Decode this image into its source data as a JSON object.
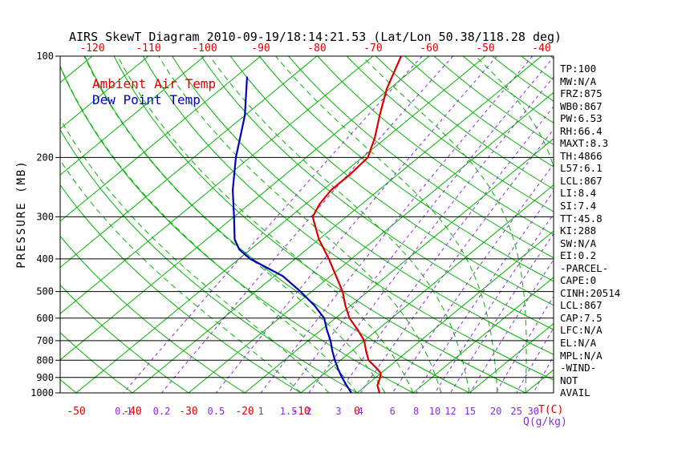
{
  "colors": {
    "background": "#ffffff",
    "grid_green": "#00b400",
    "mixing_purple": "#8a2be2",
    "temp_red": "#dd0000",
    "dew_blue": "#0000bb",
    "axis_black": "#000000"
  },
  "legend": {
    "ambient": "Ambient Air Temp",
    "dewpoint": "Dew Point Temp"
  },
  "stats": [
    "TP:100",
    "MW:N/A",
    "FRZ:875",
    "WB0:867",
    "PW:6.53",
    "RH:66.4",
    "MAXT:8.3",
    "TH:4866",
    "L57:6.1",
    "LCL:867",
    "LI:8.4",
    "SI:7.4",
    "TT:45.8",
    "KI:288",
    "SW:N/A",
    "EI:0.2",
    "-PARCEL-",
    "CAPE:0",
    "CINH:20514",
    "LCL:867",
    "CAP:7.5",
    "LFC:N/A",
    "EL:N/A",
    "MPL:N/A",
    "-WIND-",
    "NOT",
    "AVAIL"
  ],
  "chart_data": {
    "type": "line",
    "title": "AIRS SkewT Diagram 2010-09-19/18:14:21.53 (Lat/Lon 50.38/118.28 deg)",
    "y_axis": {
      "label": "PRESSURE (MB)",
      "scale": "log",
      "ticks_mb": [
        100,
        200,
        300,
        400,
        500,
        600,
        700,
        800,
        900,
        1000
      ],
      "range_mb": [
        100,
        1000
      ]
    },
    "x_axis": {
      "label": "T(C)",
      "top_ticks_c": [
        -120,
        -110,
        -100,
        -90,
        -80,
        -70,
        -60,
        -50,
        -40
      ],
      "bottom_ticks_c": [
        -50,
        -40,
        -30,
        -20,
        -10,
        0
      ]
    },
    "mixing_ratio": {
      "label": "Q(g/kg)",
      "lines_g_per_kg": [
        0.1,
        0.2,
        0.5,
        1,
        1.5,
        2,
        3,
        4,
        6,
        8,
        10,
        12,
        15,
        20,
        25,
        30
      ]
    },
    "grid": {
      "isotherm_step_c": 10,
      "isotherm_range_c": [
        -130,
        40
      ],
      "dry_adiabat_step_c": 10,
      "dry_adiabat_range_c": [
        -50,
        190
      ],
      "moist_adiabat_step_c": 5,
      "moist_adiabat_range_c": [
        -10,
        35
      ]
    },
    "series": [
      {
        "name": "Ambient Air Temp",
        "color": "#dd0000",
        "points_p_t": [
          [
            1000,
            4
          ],
          [
            950,
            2
          ],
          [
            900,
            0.8
          ],
          [
            875,
            0
          ],
          [
            850,
            -1.5
          ],
          [
            800,
            -5
          ],
          [
            750,
            -7.5
          ],
          [
            700,
            -10
          ],
          [
            650,
            -13.5
          ],
          [
            600,
            -17.5
          ],
          [
            550,
            -21
          ],
          [
            500,
            -24.5
          ],
          [
            450,
            -29
          ],
          [
            400,
            -34
          ],
          [
            350,
            -40
          ],
          [
            300,
            -46
          ],
          [
            275,
            -47.5
          ],
          [
            250,
            -48.5
          ],
          [
            225,
            -48.5
          ],
          [
            200,
            -49
          ],
          [
            175,
            -52
          ],
          [
            150,
            -56
          ],
          [
            125,
            -60.5
          ],
          [
            100,
            -65
          ]
        ]
      },
      {
        "name": "Dew Point Temp",
        "color": "#0000bb",
        "points_p_t": [
          [
            1000,
            -1
          ],
          [
            950,
            -3.5
          ],
          [
            900,
            -6
          ],
          [
            850,
            -8.5
          ],
          [
            800,
            -11
          ],
          [
            750,
            -13.5
          ],
          [
            700,
            -16
          ],
          [
            650,
            -19
          ],
          [
            600,
            -22
          ],
          [
            550,
            -26.5
          ],
          [
            500,
            -32
          ],
          [
            450,
            -38.5
          ],
          [
            400,
            -48
          ],
          [
            375,
            -52
          ],
          [
            350,
            -55
          ],
          [
            300,
            -60
          ],
          [
            250,
            -66
          ],
          [
            200,
            -72.5
          ],
          [
            150,
            -80
          ],
          [
            115,
            -88
          ]
        ]
      }
    ]
  }
}
